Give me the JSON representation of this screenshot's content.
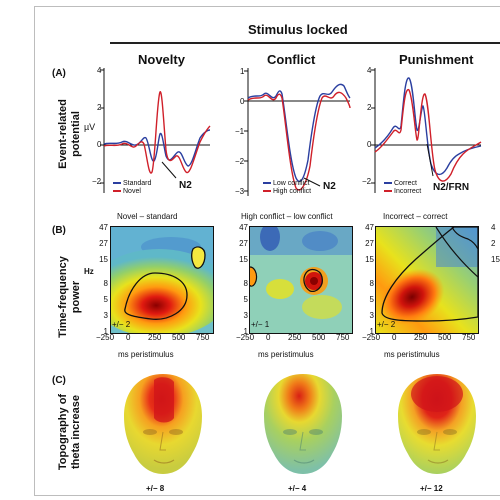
{
  "figure": {
    "header": "Stimulus locked",
    "columns": [
      "Novelty",
      "Conflict",
      "Punishment"
    ],
    "panel_labels": [
      "(A)",
      "(B)",
      "(C)"
    ],
    "row_labels": {
      "erp": [
        "Event-related",
        "potential"
      ],
      "tf": [
        "Time-frequency",
        "power"
      ],
      "topo": [
        "Topography of",
        "theta increase"
      ]
    },
    "erp": {
      "unit": "µV",
      "y_ticks_novelty": [
        "4",
        "2",
        "0",
        "−2"
      ],
      "y_ticks_conflict": [
        "1",
        "0",
        "−1",
        "−2",
        "−3"
      ],
      "y_ticks_punishment": [
        "4",
        "2",
        "0",
        "−2"
      ],
      "legends": [
        [
          "Standard",
          "Novel"
        ],
        [
          "Low conflict",
          "High conflict"
        ],
        [
          "Correct",
          "Incorrect"
        ]
      ],
      "components": [
        "N2",
        "N2",
        "N2/FRN"
      ]
    },
    "tf": {
      "contrasts": [
        "Novel – standard",
        "High conflict – low conflict",
        "Incorrect – correct"
      ],
      "hz_label": "Hz",
      "freq_ticks": [
        "47",
        "27",
        "15",
        "8",
        "5",
        "3",
        "1"
      ],
      "time_ticks": [
        "−250",
        "0",
        "250",
        "500",
        "750"
      ],
      "xlabel": "ms peristimulus",
      "scales": [
        "+/− 2",
        "+/− 1",
        "+/− 2"
      ]
    },
    "topo": {
      "scales": [
        "+/− 8",
        "+/− 4",
        "+/− 12"
      ]
    },
    "colors": {
      "blue_trace": "#2b3fa0",
      "red_trace": "#d0202a"
    },
    "right_edge_ticks": [
      "4",
      "2",
      "15"
    ]
  }
}
